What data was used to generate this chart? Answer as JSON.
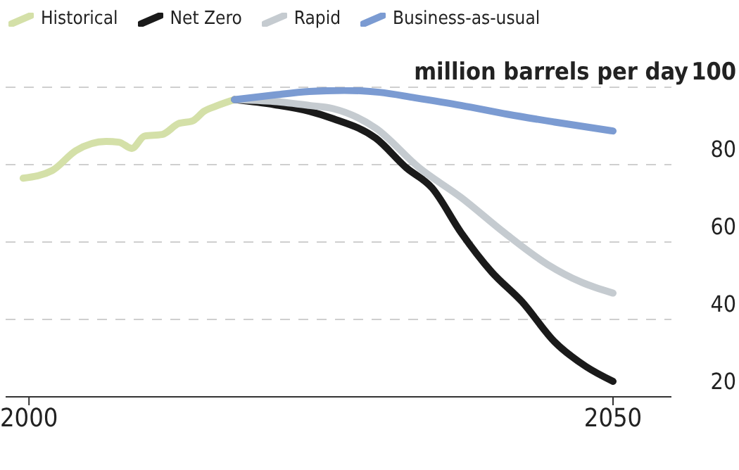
{
  "chart_data": {
    "type": "line",
    "ylabel": "million barrels per day",
    "xlim": [
      1998,
      2055
    ],
    "xticks": [
      2000,
      2050
    ],
    "ylim": [
      20,
      100
    ],
    "yticks": [
      20,
      40,
      60,
      80,
      100
    ],
    "grid": "y",
    "legend": "top left",
    "line_style": "solid",
    "marker": "none",
    "series": [
      {
        "name": "Historical",
        "color": "#d4e0a8",
        "x": [
          1999.5,
          2002,
          2004,
          2006.6,
          2007.7,
          2008.8,
          2009.9,
          2011.4,
          2012.8,
          2014,
          2015,
          2016,
          2017.6
        ],
        "values": [
          76.5,
          78.5,
          83.6,
          86,
          85.8,
          84.2,
          87.4,
          87.8,
          90.6,
          91.3,
          93.8,
          95.1,
          96.8
        ]
      },
      {
        "name": "Net Zero",
        "color": "#1a1a1a",
        "x": [
          2017.6,
          2021,
          2024,
          2026,
          2029.7,
          2032.3,
          2034.5,
          2037,
          2039.6,
          2042.2,
          2045,
          2047.7,
          2050
        ],
        "values": [
          96.8,
          95.5,
          93.8,
          91.9,
          86.8,
          79.2,
          74,
          62.4,
          52.3,
          44.6,
          34.2,
          27.8,
          24
        ]
      },
      {
        "name": "Rapid",
        "color": "#c5cbd0",
        "x": [
          2017.6,
          2021,
          2024,
          2026,
          2029.7,
          2033.4,
          2037,
          2040.7,
          2044.4,
          2047.3,
          2050
        ],
        "values": [
          96.8,
          96.3,
          95.3,
          94.5,
          89.4,
          79.2,
          71.5,
          62.4,
          54.2,
          49.6,
          46.8
        ]
      },
      {
        "name": "Business-as-usual",
        "color": "#7b9bd2",
        "x": [
          2017.6,
          2021,
          2024,
          2027,
          2030,
          2033,
          2037,
          2041,
          2045,
          2050
        ],
        "values": [
          96.8,
          98,
          98.9,
          99.2,
          98.7,
          97.3,
          95.3,
          93,
          91,
          88.7
        ]
      }
    ]
  }
}
